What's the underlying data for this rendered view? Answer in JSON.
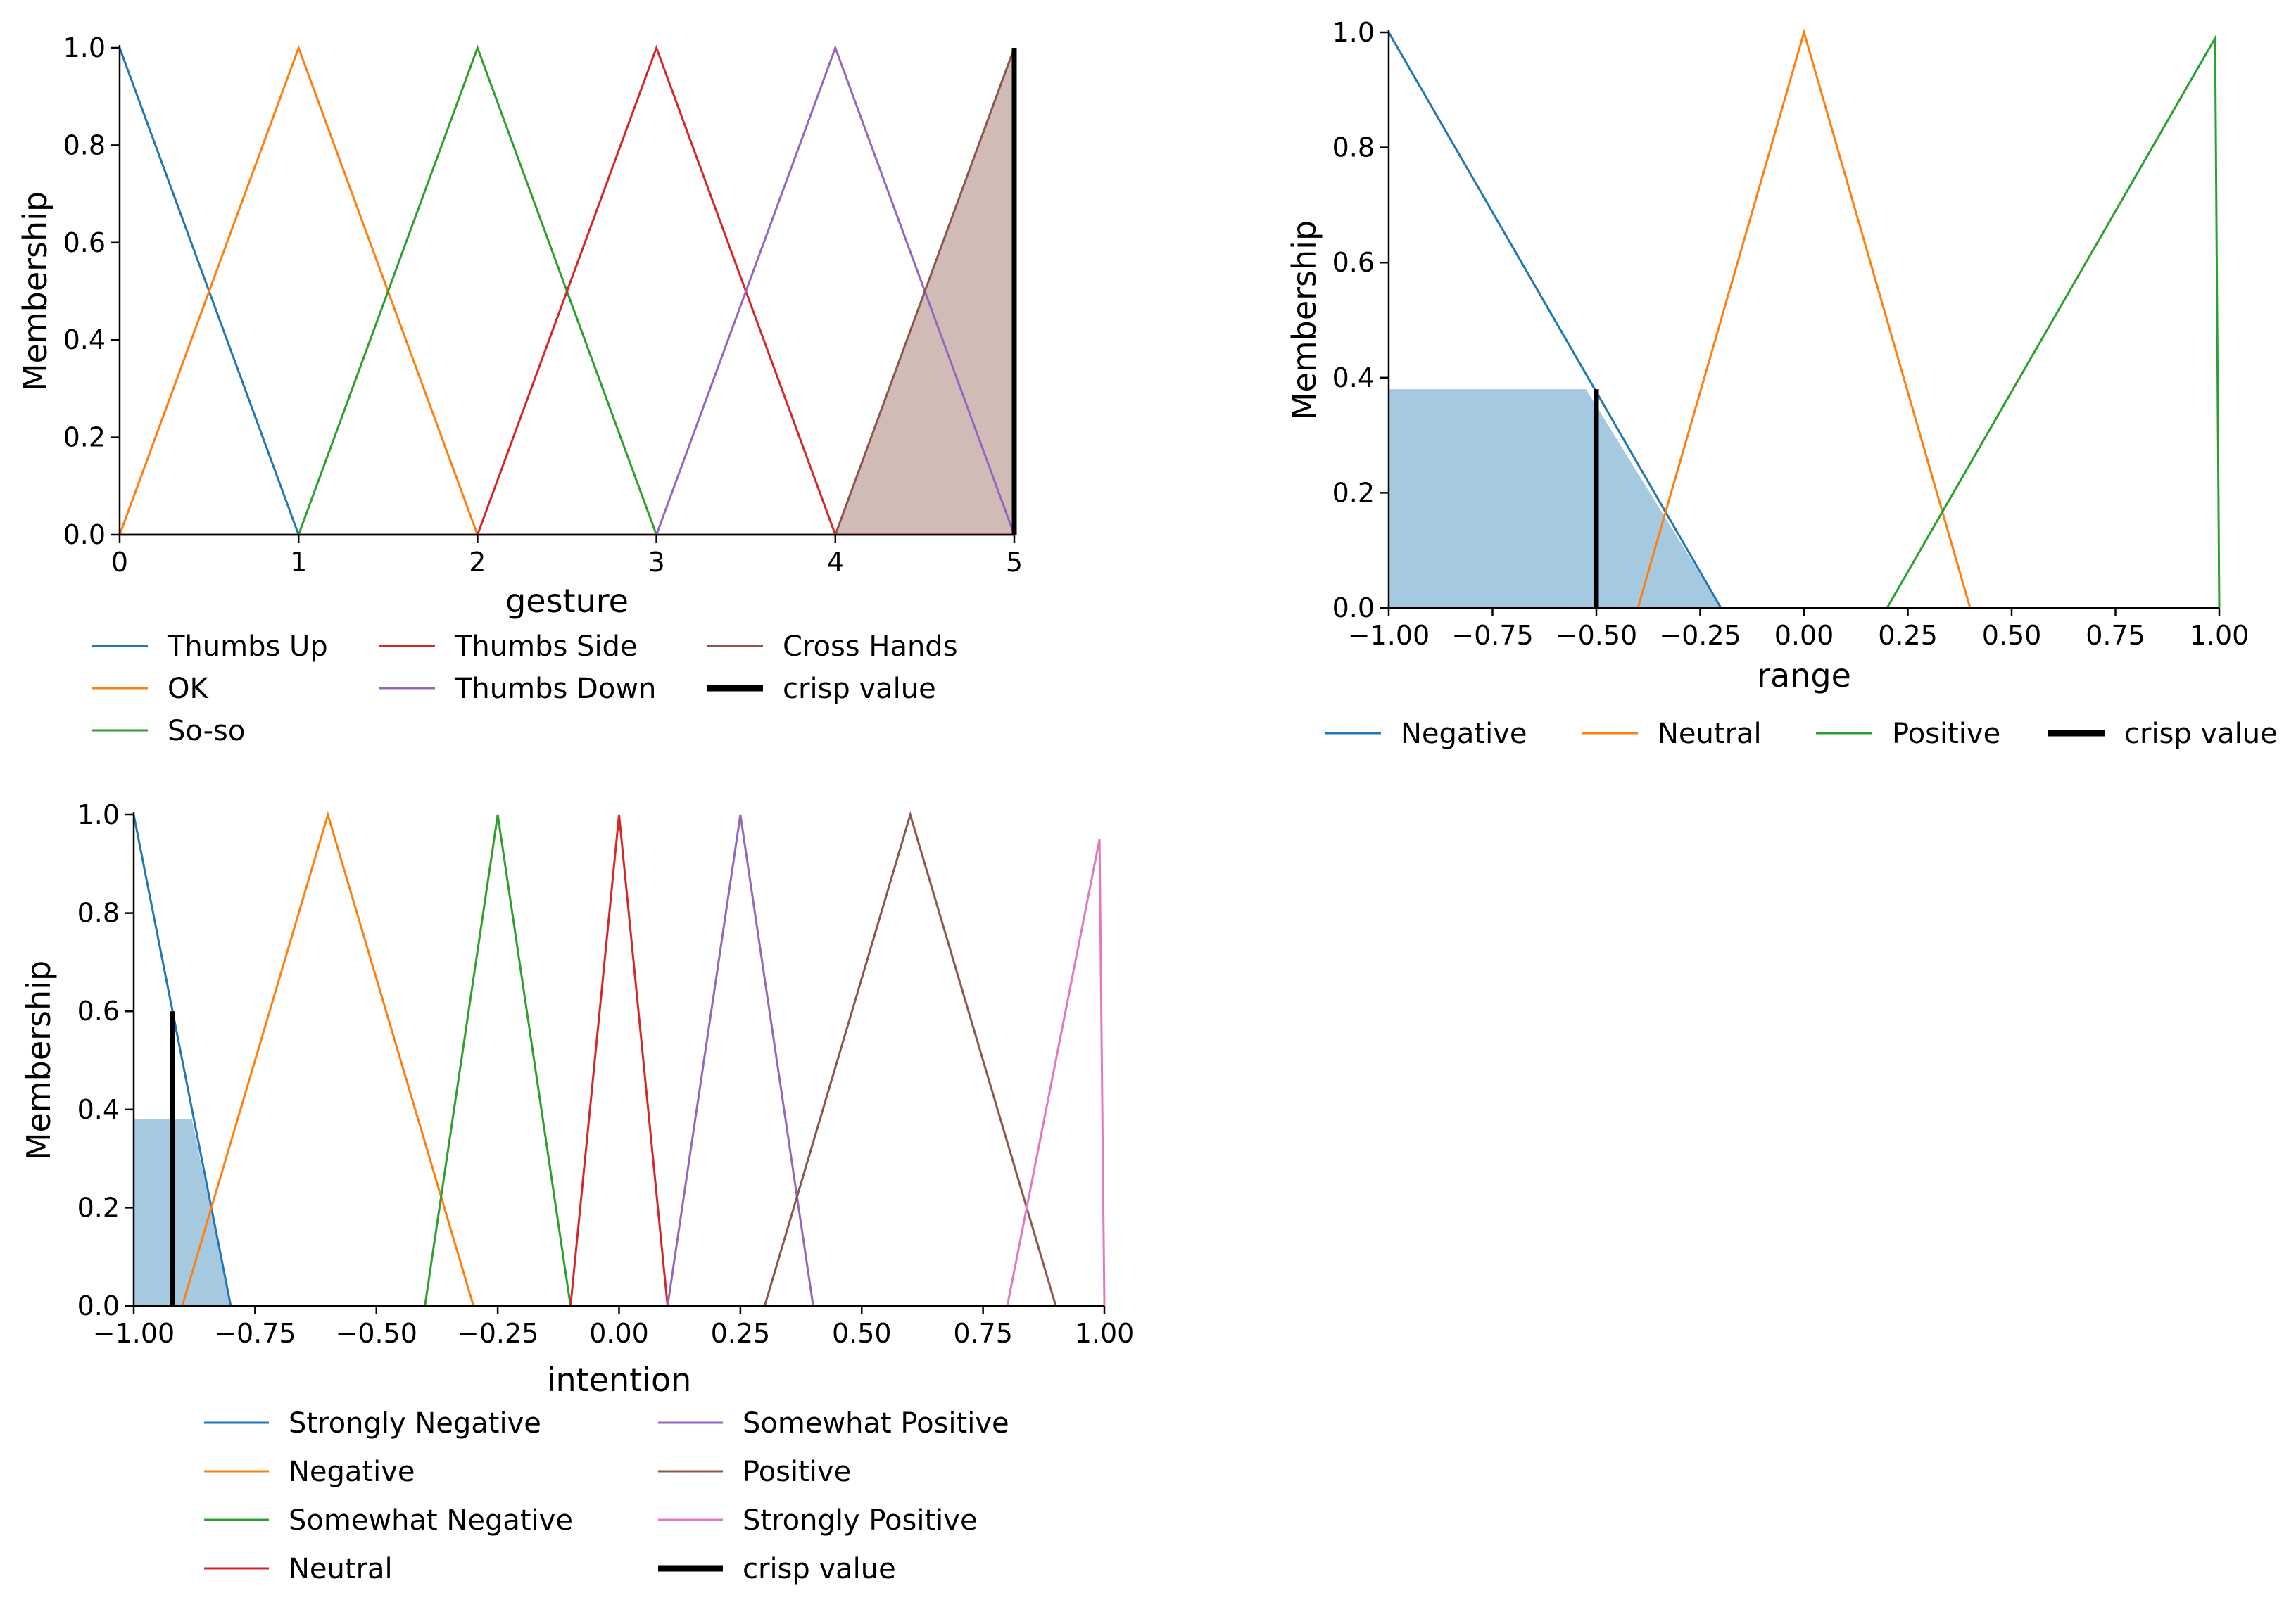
{
  "chart_data": [
    {
      "type": "line",
      "xlabel": "gesture",
      "ylabel": "Membership",
      "xlim": [
        0,
        5
      ],
      "ylim": [
        0,
        1
      ],
      "xticks": [
        "0",
        "1",
        "2",
        "3",
        "4",
        "5"
      ],
      "xtick_values": [
        0,
        1,
        2,
        3,
        4,
        5
      ],
      "yticks": [
        "0.0",
        "0.2",
        "0.4",
        "0.6",
        "0.8",
        "1.0"
      ],
      "ytick_values": [
        0,
        0.2,
        0.4,
        0.6,
        0.8,
        1.0
      ],
      "series": [
        {
          "name": "Thumbs Up",
          "color": "#1f77b4",
          "x": [
            0,
            1,
            5
          ],
          "y": [
            1,
            0,
            0
          ]
        },
        {
          "name": "OK",
          "color": "#ff7f0e",
          "x": [
            0,
            1,
            2,
            5
          ],
          "y": [
            0,
            1,
            0,
            0
          ]
        },
        {
          "name": "So-so",
          "color": "#2ca02c",
          "x": [
            0,
            1,
            2,
            3,
            5
          ],
          "y": [
            0,
            0,
            1,
            0,
            0
          ]
        },
        {
          "name": "Thumbs Side",
          "color": "#d62728",
          "x": [
            0,
            2,
            3,
            4,
            5
          ],
          "y": [
            0,
            0,
            1,
            0,
            0
          ]
        },
        {
          "name": "Thumbs Down",
          "color": "#9467bd",
          "x": [
            0,
            3,
            4,
            5
          ],
          "y": [
            0,
            0,
            1,
            0
          ]
        },
        {
          "name": "Cross Hands",
          "color": "#8c564b",
          "x": [
            0,
            4,
            5
          ],
          "y": [
            0,
            0,
            1
          ]
        }
      ],
      "fill": {
        "color": "#8c564b",
        "opacity": 0.4,
        "x": [
          4,
          5,
          5
        ],
        "y": [
          0,
          1,
          0
        ]
      },
      "crisp_value": {
        "x": 5,
        "height": 1.0
      },
      "legend_columns": [
        [
          "Thumbs Up",
          "OK",
          "So-so"
        ],
        [
          "Thumbs Side",
          "Thumbs Down"
        ],
        [
          "Cross Hands",
          "crisp value"
        ]
      ],
      "crisp_label": "crisp value",
      "legend_location": "below"
    },
    {
      "type": "line",
      "xlabel": "range",
      "ylabel": "Membership",
      "xlim": [
        -1,
        1
      ],
      "ylim": [
        0,
        1
      ],
      "xticks": [
        "−1.00",
        "−0.75",
        "−0.50",
        "−0.25",
        "0.00",
        "0.25",
        "0.50",
        "0.75",
        "1.00"
      ],
      "xtick_values": [
        -1,
        -0.75,
        -0.5,
        -0.25,
        0,
        0.25,
        0.5,
        0.75,
        1
      ],
      "yticks": [
        "0.0",
        "0.2",
        "0.4",
        "0.6",
        "0.8",
        "1.0"
      ],
      "ytick_values": [
        0,
        0.2,
        0.4,
        0.6,
        0.8,
        1.0
      ],
      "series": [
        {
          "name": "Negative",
          "color": "#1f77b4",
          "x": [
            -1,
            -0.2,
            1
          ],
          "y": [
            1,
            0,
            0
          ]
        },
        {
          "name": "Neutral",
          "color": "#ff7f0e",
          "x": [
            -1,
            -0.4,
            0,
            0.4,
            1
          ],
          "y": [
            0,
            0,
            1,
            0,
            0
          ]
        },
        {
          "name": "Positive",
          "color": "#2ca02c",
          "x": [
            -1,
            0.2,
            0.99,
            1
          ],
          "y": [
            0,
            0,
            0.99,
            0
          ]
        }
      ],
      "fill": {
        "color": "#1f77b4",
        "opacity": 0.4,
        "x": [
          -1,
          -1,
          -0.525,
          -0.2
        ],
        "y": [
          0,
          0.38,
          0.38,
          0
        ]
      },
      "crisp_value": {
        "x": -0.5,
        "height": 0.38
      },
      "legend_columns": [
        [
          "Negative"
        ],
        [
          "Neutral"
        ],
        [
          "Positive"
        ],
        [
          "crisp value"
        ]
      ],
      "crisp_label": "crisp value",
      "legend_location": "below"
    },
    {
      "type": "line",
      "xlabel": "intention",
      "ylabel": "Membership",
      "xlim": [
        -1,
        1
      ],
      "ylim": [
        0,
        1
      ],
      "xticks": [
        "−1.00",
        "−0.75",
        "−0.50",
        "−0.25",
        "0.00",
        "0.25",
        "0.50",
        "0.75",
        "1.00"
      ],
      "xtick_values": [
        -1,
        -0.75,
        -0.5,
        -0.25,
        0,
        0.25,
        0.5,
        0.75,
        1
      ],
      "yticks": [
        "0.0",
        "0.2",
        "0.4",
        "0.6",
        "0.8",
        "1.0"
      ],
      "ytick_values": [
        0,
        0.2,
        0.4,
        0.6,
        0.8,
        1.0
      ],
      "series": [
        {
          "name": "Strongly Negative",
          "color": "#1f77b4",
          "x": [
            -1,
            -0.8,
            1
          ],
          "y": [
            1,
            0,
            0
          ]
        },
        {
          "name": "Negative",
          "color": "#ff7f0e",
          "x": [
            -1,
            -0.9,
            -0.6,
            -0.3,
            1
          ],
          "y": [
            0,
            0,
            1,
            0,
            0
          ]
        },
        {
          "name": "Somewhat Negative",
          "color": "#2ca02c",
          "x": [
            -1,
            -0.4,
            -0.25,
            -0.1,
            1
          ],
          "y": [
            0,
            0,
            1,
            0,
            0
          ]
        },
        {
          "name": "Neutral",
          "color": "#d62728",
          "x": [
            -1,
            -0.1,
            0,
            0.1,
            1
          ],
          "y": [
            0,
            0,
            1,
            0,
            0
          ]
        },
        {
          "name": "Somewhat Positive",
          "color": "#9467bd",
          "x": [
            -1,
            0.1,
            0.25,
            0.4,
            1
          ],
          "y": [
            0,
            0,
            1,
            0,
            0
          ]
        },
        {
          "name": "Positive",
          "color": "#8c564b",
          "x": [
            -1,
            0.3,
            0.6,
            0.9,
            1
          ],
          "y": [
            0,
            0,
            1,
            0,
            0
          ]
        },
        {
          "name": "Strongly Positive",
          "color": "#e377c2",
          "x": [
            -1,
            0.8,
            0.99,
            1
          ],
          "y": [
            0,
            0,
            0.95,
            0
          ]
        }
      ],
      "fill": {
        "color": "#1f77b4",
        "opacity": 0.4,
        "x": [
          -1,
          -1,
          -0.88,
          -0.8
        ],
        "y": [
          0,
          0.38,
          0.38,
          0
        ]
      },
      "crisp_value": {
        "x": -0.92,
        "height": 0.6
      },
      "legend_columns": [
        [
          "Strongly Negative",
          "Negative",
          "Somewhat Negative",
          "Neutral"
        ],
        [
          "Somewhat Positive",
          "Positive",
          "Strongly Positive",
          "crisp value"
        ]
      ],
      "crisp_label": "crisp value",
      "legend_location": "below"
    }
  ]
}
